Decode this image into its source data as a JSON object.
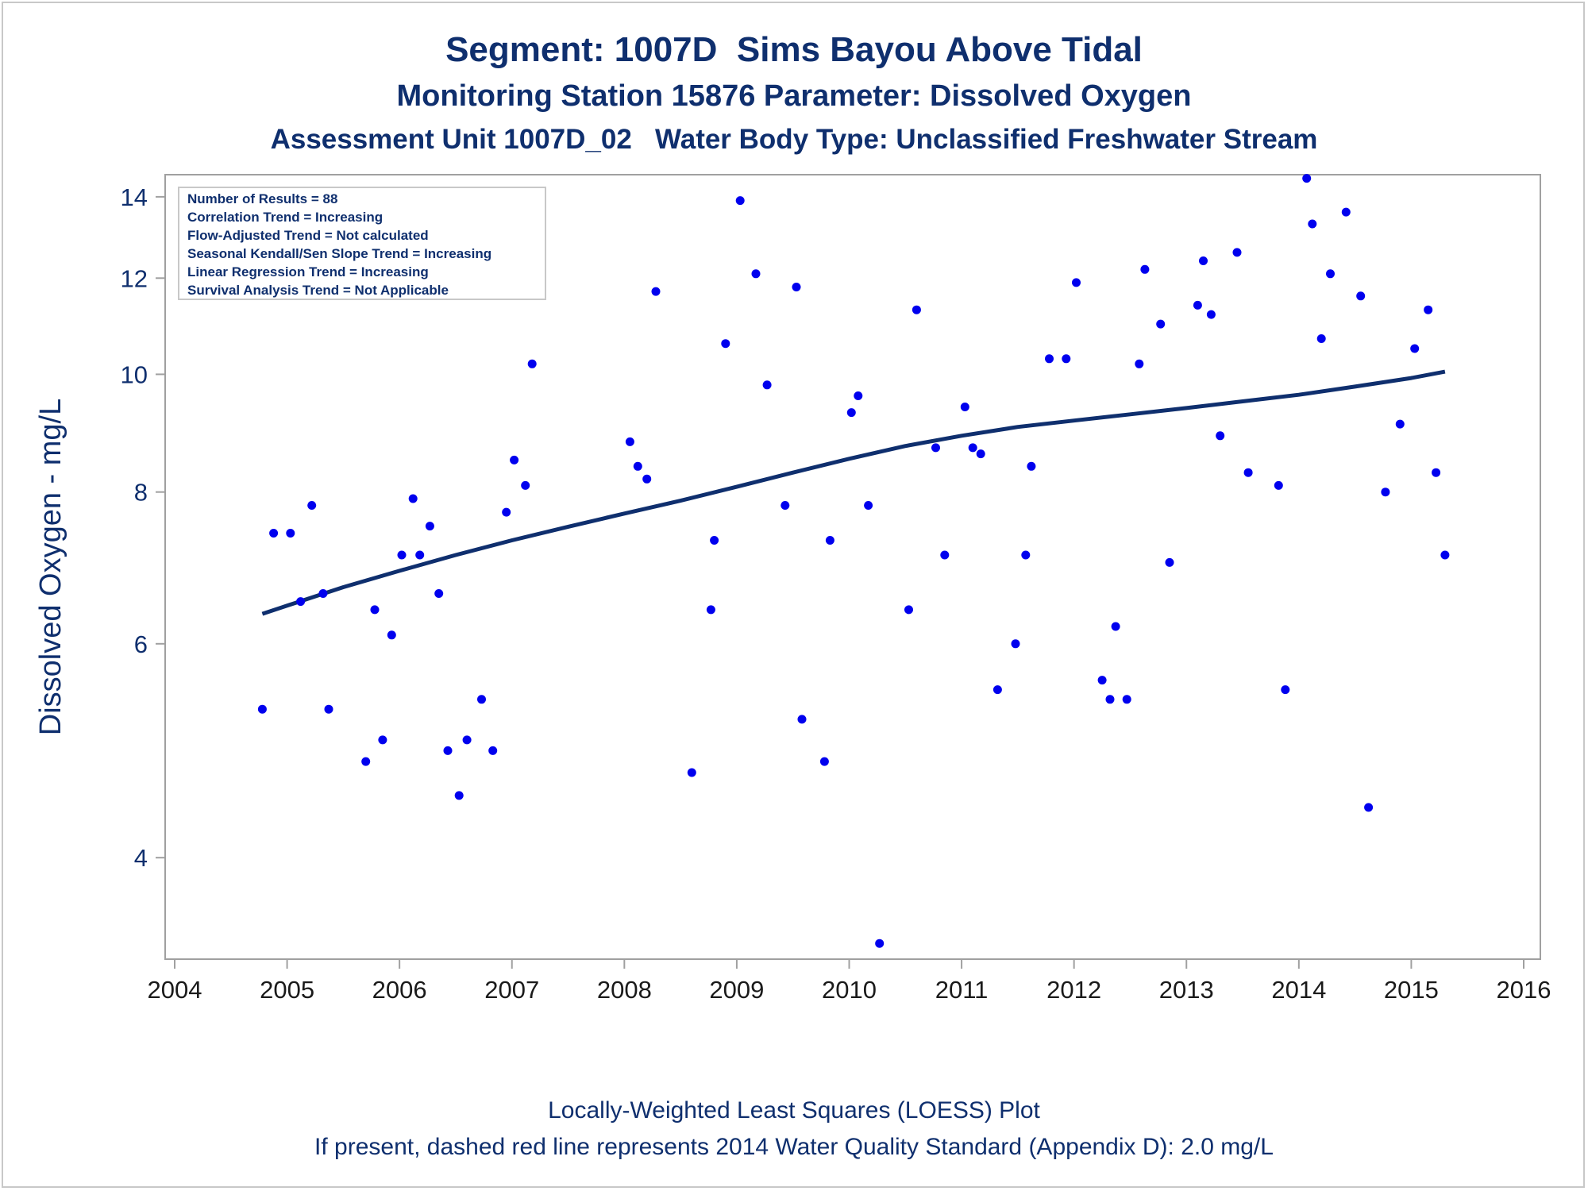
{
  "titles": {
    "line1": "Segment: 1007D  Sims Bayou Above Tidal",
    "line2": "Monitoring Station 15876 Parameter: Dissolved Oxygen",
    "line3": "Assessment Unit 1007D_02   Water Body Type: Unclassified Freshwater Stream"
  },
  "footnotes": {
    "line1": "Locally-Weighted Least Squares (LOESS) Plot",
    "line2": "If present, dashed red line represents 2014 Water Quality Standard (Appendix D): 2.0 mg/L"
  },
  "stats_box": [
    "Number of Results = 88",
    "Correlation Trend = Increasing",
    "Flow-Adjusted Trend = Not calculated",
    "Seasonal Kendall/Sen Slope Trend = Increasing",
    "Linear Regression Trend = Increasing",
    "Survival Analysis Trend = Not Applicable"
  ],
  "colors": {
    "points": "#0000ee",
    "trend_line": "#0f2f6e",
    "text": "#0f2f6e",
    "axis": "#a0a0a0"
  },
  "chart_data": {
    "type": "scatter",
    "title": "Segment: 1007D  Sims Bayou Above Tidal",
    "xlabel": "",
    "ylabel": "Dissolved Oxygen - mg/L",
    "y_scale": "log",
    "xlim": [
      2004,
      2016
    ],
    "ylim": [
      3.3,
      14.6
    ],
    "x_ticks": [
      2004,
      2005,
      2006,
      2007,
      2008,
      2009,
      2010,
      2011,
      2012,
      2013,
      2014,
      2015,
      2016
    ],
    "y_ticks": [
      4,
      6,
      8,
      10,
      12,
      14
    ],
    "grid": false,
    "series": [
      {
        "kind": "points",
        "x": [
          2004.78,
          2004.88,
          2005.03,
          2005.12,
          2005.22,
          2005.32,
          2005.37,
          2005.7,
          2005.78,
          2005.85,
          2005.93,
          2006.02,
          2006.12,
          2006.18,
          2006.27,
          2006.35,
          2006.43,
          2006.53,
          2006.6,
          2006.73,
          2006.83,
          2006.95,
          2007.02,
          2007.12,
          2007.18,
          2008.05,
          2008.12,
          2008.2,
          2008.28,
          2008.6,
          2008.77,
          2008.8,
          2008.9,
          2009.03,
          2009.17,
          2009.27,
          2009.43,
          2009.53,
          2009.58,
          2009.78,
          2009.83,
          2010.02,
          2010.08,
          2010.17,
          2010.27,
          2010.53,
          2010.6,
          2010.77,
          2010.85,
          2011.03,
          2011.1,
          2011.17,
          2011.32,
          2011.48,
          2011.57,
          2011.62,
          2011.78,
          2011.93,
          2012.02,
          2012.25,
          2012.32,
          2012.37,
          2012.47,
          2012.58,
          2012.63,
          2012.77,
          2012.85,
          2013.1,
          2013.15,
          2013.22,
          2013.3,
          2013.45,
          2013.55,
          2013.82,
          2013.88,
          2014.07,
          2014.12,
          2014.2,
          2014.28,
          2014.42,
          2014.55,
          2014.62,
          2014.77,
          2014.9,
          2015.03,
          2015.15,
          2015.22,
          2015.3
        ],
        "y": [
          5.3,
          7.4,
          7.4,
          6.5,
          7.8,
          6.6,
          5.3,
          4.8,
          6.4,
          5.0,
          6.1,
          7.1,
          7.9,
          7.1,
          7.5,
          6.6,
          4.9,
          4.5,
          5.0,
          5.4,
          4.9,
          7.7,
          8.5,
          8.1,
          10.2,
          8.8,
          8.4,
          8.2,
          11.7,
          4.7,
          6.4,
          7.3,
          10.6,
          13.9,
          12.1,
          9.8,
          7.8,
          11.8,
          5.2,
          4.8,
          7.3,
          9.3,
          9.6,
          7.8,
          3.4,
          6.4,
          11.3,
          8.7,
          7.1,
          9.4,
          8.7,
          8.6,
          5.5,
          6.0,
          7.1,
          8.4,
          10.3,
          10.3,
          11.9,
          5.6,
          5.4,
          6.2,
          5.4,
          10.2,
          12.2,
          11.0,
          7.0,
          11.4,
          12.4,
          11.2,
          8.9,
          12.6,
          8.3,
          8.1,
          5.5,
          14.5,
          13.3,
          10.7,
          12.1,
          13.6,
          11.6,
          4.4,
          8.0,
          9.1,
          10.5,
          11.3,
          8.3,
          7.1
        ]
      },
      {
        "kind": "loess",
        "x": [
          2004.78,
          2005.0,
          2005.5,
          2006.0,
          2006.5,
          2007.0,
          2007.5,
          2008.0,
          2008.5,
          2009.0,
          2009.5,
          2010.0,
          2010.5,
          2011.0,
          2011.5,
          2012.0,
          2012.5,
          2013.0,
          2013.5,
          2014.0,
          2014.5,
          2015.0,
          2015.3
        ],
        "y": [
          6.35,
          6.45,
          6.68,
          6.89,
          7.1,
          7.3,
          7.49,
          7.68,
          7.87,
          8.08,
          8.3,
          8.52,
          8.73,
          8.9,
          9.05,
          9.16,
          9.27,
          9.38,
          9.5,
          9.62,
          9.77,
          9.93,
          10.05
        ]
      }
    ]
  }
}
